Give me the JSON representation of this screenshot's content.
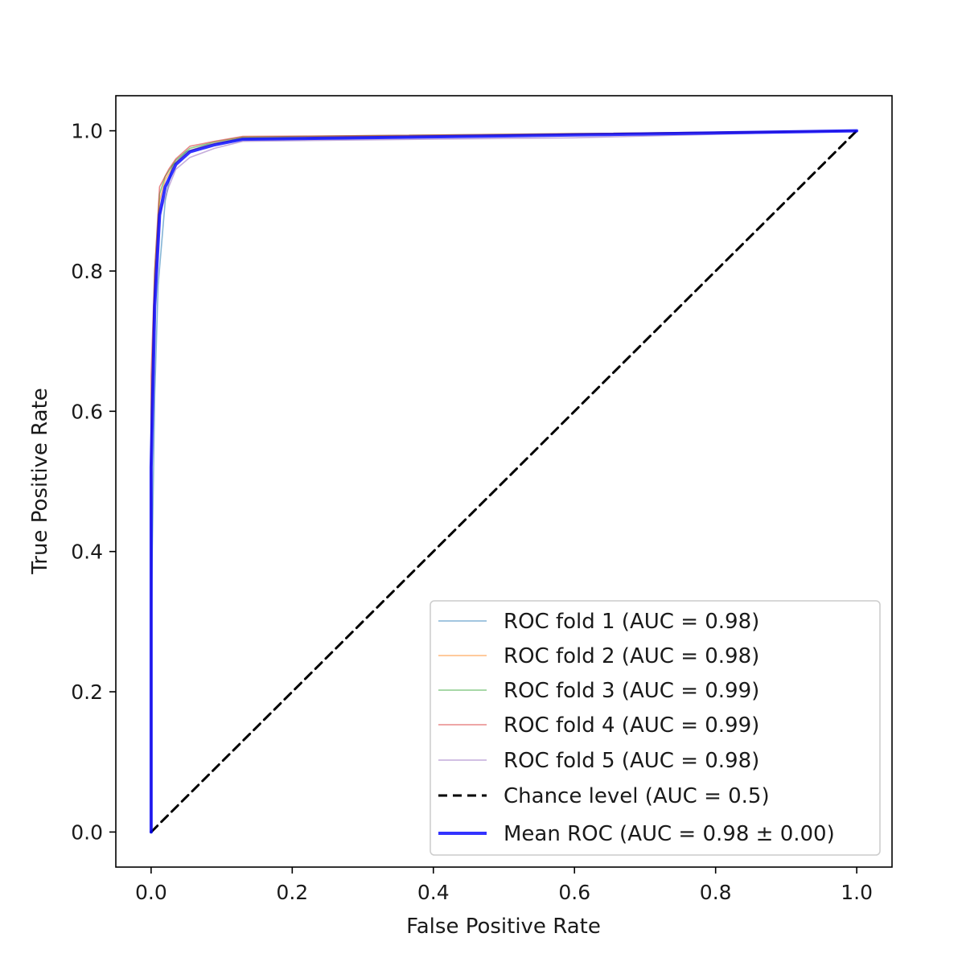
{
  "chart_data": {
    "type": "line",
    "title": "",
    "xlabel": "False Positive Rate",
    "ylabel": "True Positive Rate",
    "xlim": [
      -0.05,
      1.05
    ],
    "ylim": [
      -0.05,
      1.05
    ],
    "xticks": [
      0.0,
      0.2,
      0.4,
      0.6,
      0.8,
      1.0
    ],
    "yticks": [
      0.0,
      0.2,
      0.4,
      0.6,
      0.8,
      1.0
    ],
    "xtick_labels": [
      "0.0",
      "0.2",
      "0.4",
      "0.6",
      "0.8",
      "1.0"
    ],
    "ytick_labels": [
      "0.0",
      "0.2",
      "0.4",
      "0.6",
      "0.8",
      "1.0"
    ],
    "grid": false,
    "legend_position": "lower-right",
    "series": [
      {
        "name": "ROC fold 1 (AUC = 0.98)",
        "color": "#1f77b4",
        "style": "solid",
        "x": [
          0.0,
          0.0,
          0.005,
          0.01,
          0.02,
          0.03,
          0.05,
          0.08,
          0.13,
          0.3,
          0.6,
          1.0
        ],
        "y": [
          0.0,
          0.3,
          0.62,
          0.78,
          0.9,
          0.95,
          0.97,
          0.98,
          0.988,
          0.99,
          0.995,
          1.0
        ]
      },
      {
        "name": "ROC fold 2 (AUC = 0.98)",
        "color": "#ff7f0e",
        "style": "solid",
        "x": [
          0.0,
          0.0,
          0.005,
          0.012,
          0.02,
          0.035,
          0.055,
          0.09,
          0.13,
          0.3,
          0.6,
          1.0
        ],
        "y": [
          0.0,
          0.55,
          0.78,
          0.9,
          0.93,
          0.955,
          0.972,
          0.982,
          0.99,
          0.992,
          0.995,
          1.0
        ]
      },
      {
        "name": "ROC fold 3 (AUC = 0.99)",
        "color": "#2ca02c",
        "style": "solid",
        "x": [
          0.0,
          0.0,
          0.005,
          0.012,
          0.02,
          0.035,
          0.055,
          0.09,
          0.13,
          0.3,
          0.6,
          1.0
        ],
        "y": [
          0.0,
          0.6,
          0.8,
          0.91,
          0.935,
          0.958,
          0.975,
          0.984,
          0.991,
          0.993,
          0.996,
          1.0
        ]
      },
      {
        "name": "ROC fold 4 (AUC = 0.99)",
        "color": "#d62728",
        "style": "solid",
        "x": [
          0.0,
          0.0,
          0.005,
          0.012,
          0.025,
          0.035,
          0.055,
          0.09,
          0.13,
          0.3,
          0.6,
          1.0
        ],
        "y": [
          0.0,
          0.65,
          0.8,
          0.92,
          0.945,
          0.96,
          0.978,
          0.985,
          0.992,
          0.993,
          0.996,
          1.0
        ]
      },
      {
        "name": "ROC fold 5 (AUC = 0.98)",
        "color": "#9467bd",
        "style": "solid",
        "x": [
          0.0,
          0.0,
          0.005,
          0.012,
          0.025,
          0.035,
          0.055,
          0.09,
          0.13,
          0.3,
          0.6,
          1.0
        ],
        "y": [
          0.0,
          0.5,
          0.75,
          0.88,
          0.92,
          0.945,
          0.962,
          0.975,
          0.985,
          0.987,
          0.99,
          1.0
        ]
      },
      {
        "name": "Chance level (AUC = 0.5)",
        "color": "#000000",
        "style": "dashed",
        "x": [
          0.0,
          1.0
        ],
        "y": [
          0.0,
          1.0
        ]
      },
      {
        "name": "Mean ROC (AUC = 0.98 ± 0.00)",
        "color": "#0000ff",
        "style": "bold",
        "x": [
          0.0,
          0.0,
          0.005,
          0.012,
          0.02,
          0.035,
          0.055,
          0.09,
          0.13,
          0.3,
          0.6,
          1.0
        ],
        "y": [
          0.0,
          0.52,
          0.75,
          0.88,
          0.92,
          0.952,
          0.97,
          0.98,
          0.988,
          0.99,
          0.994,
          1.0
        ]
      }
    ]
  }
}
